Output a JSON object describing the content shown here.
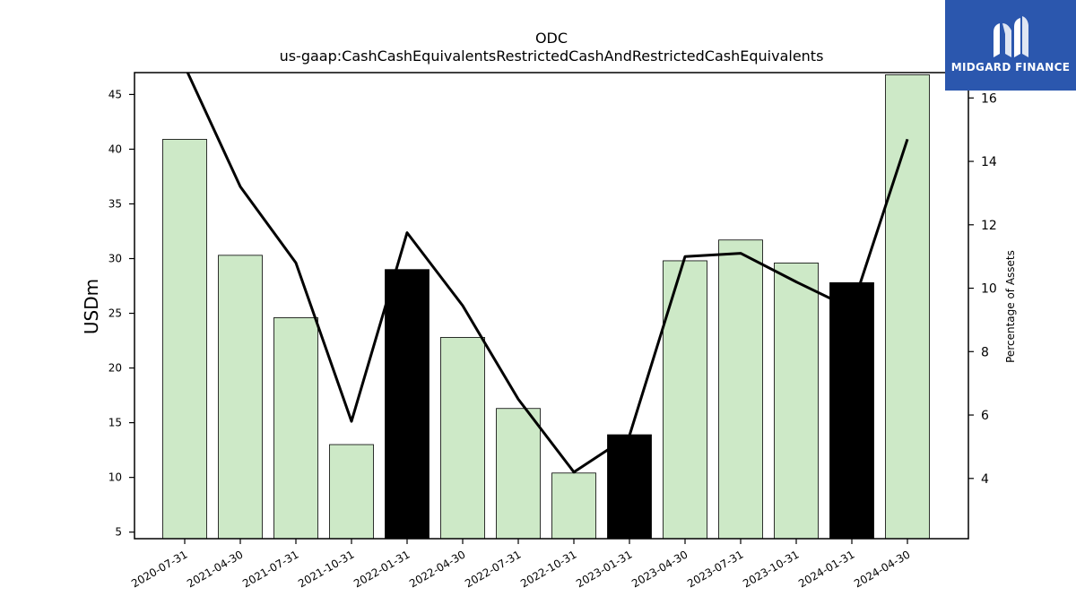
{
  "brand": {
    "name": "MIDGARD FINANCE",
    "bg_color": "#2b57ae"
  },
  "chart_data": {
    "type": "bar",
    "title": "ODC",
    "subtitle": "us-gaap:CashCashEquivalentsRestrictedCashAndRestrictedCashEquivalents",
    "ylabel": "USDm",
    "y2label": "Percentage of Assets",
    "ylim": [
      4.4,
      47
    ],
    "y2lim": [
      2.1,
      16.8
    ],
    "yticks": [
      5,
      10,
      15,
      20,
      25,
      30,
      35,
      40,
      45
    ],
    "y2ticks": [
      4,
      6,
      8,
      10,
      12,
      14,
      16
    ],
    "categories": [
      "2020-07-31",
      "2021-04-30",
      "2021-07-31",
      "2021-10-31",
      "2022-01-31",
      "2022-04-30",
      "2022-07-31",
      "2022-10-31",
      "2023-01-31",
      "2023-04-30",
      "2023-07-31",
      "2023-10-31",
      "2024-01-31",
      "2024-04-30"
    ],
    "series": [
      {
        "type": "bar",
        "axis": "left",
        "values": [
          40.9,
          30.3,
          24.6,
          13.0,
          29.0,
          22.8,
          16.3,
          10.4,
          13.9,
          29.8,
          31.7,
          29.6,
          27.8,
          46.8
        ],
        "colors": [
          "#cde9c7",
          "#cde9c7",
          "#cde9c7",
          "#cde9c7",
          "#000000",
          "#cde9c7",
          "#cde9c7",
          "#cde9c7",
          "#000000",
          "#cde9c7",
          "#cde9c7",
          "#cde9c7",
          "#000000",
          "#cde9c7"
        ]
      },
      {
        "type": "line",
        "axis": "right",
        "color": "#000000",
        "values": [
          17.0,
          13.2,
          10.8,
          5.8,
          11.75,
          9.45,
          6.5,
          4.2,
          5.35,
          11.0,
          11.1,
          10.2,
          9.35,
          14.7
        ]
      }
    ],
    "grid": false,
    "legend": "none"
  }
}
